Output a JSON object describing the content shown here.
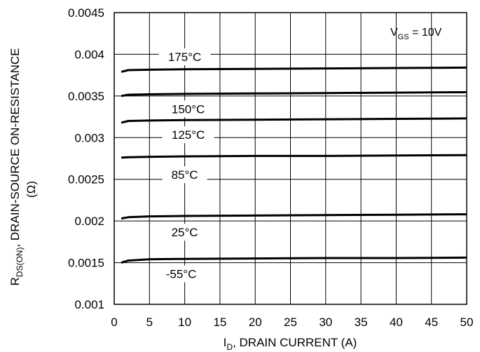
{
  "chart_data": {
    "type": "line",
    "title": "",
    "xlabel": {
      "main": "I",
      "sub": "D",
      "rest": ", DRAIN CURRENT (A)"
    },
    "ylabel": {
      "main": "R",
      "sub": "DS(ON)",
      "rest": ",   DRAIN-SOURCE ON-RESISTANCE",
      "line2": "(Ω)"
    },
    "condition": {
      "main": "V",
      "sub": "GS",
      "rest": " = 10V"
    },
    "xlim": [
      0,
      50
    ],
    "ylim": [
      0.001,
      0.0045
    ],
    "x_ticks": [
      "0",
      "5",
      "10",
      "15",
      "20",
      "25",
      "30",
      "35",
      "40",
      "45",
      "50"
    ],
    "y_ticks": [
      "0.001",
      "0.0015",
      "0.002",
      "0.0025",
      "0.003",
      "0.0035",
      "0.004",
      "0.0045"
    ],
    "grid": true,
    "series": [
      {
        "name": "175°C",
        "label_x": 10,
        "label_y": 0.00397,
        "points": [
          [
            1,
            0.00379
          ],
          [
            2,
            0.00381
          ],
          [
            5,
            0.003815
          ],
          [
            10,
            0.00382
          ],
          [
            20,
            0.003825
          ],
          [
            30,
            0.00383
          ],
          [
            40,
            0.003835
          ],
          [
            50,
            0.00384
          ]
        ]
      },
      {
        "name": "150°C",
        "label_x": 10.5,
        "label_y": 0.003345,
        "points": [
          [
            1,
            0.0035
          ],
          [
            2,
            0.003515
          ],
          [
            5,
            0.00352
          ],
          [
            10,
            0.003525
          ],
          [
            20,
            0.00353
          ],
          [
            30,
            0.003535
          ],
          [
            40,
            0.00354
          ],
          [
            50,
            0.003545
          ]
        ]
      },
      {
        "name": "125°C",
        "label_x": 10.5,
        "label_y": 0.003035,
        "points": [
          [
            1,
            0.00318
          ],
          [
            2,
            0.0032
          ],
          [
            5,
            0.003205
          ],
          [
            10,
            0.00321
          ],
          [
            20,
            0.003215
          ],
          [
            30,
            0.00322
          ],
          [
            40,
            0.003225
          ],
          [
            50,
            0.00323
          ]
        ]
      },
      {
        "name": "85°C",
        "label_x": 10,
        "label_y": 0.002555,
        "points": [
          [
            1,
            0.00276
          ],
          [
            2,
            0.002765
          ],
          [
            5,
            0.00277
          ],
          [
            10,
            0.002775
          ],
          [
            20,
            0.00278
          ],
          [
            30,
            0.00278
          ],
          [
            40,
            0.002785
          ],
          [
            50,
            0.00279
          ]
        ]
      },
      {
        "name": "25°C",
        "label_x": 10,
        "label_y": 0.001865,
        "points": [
          [
            1,
            0.00203
          ],
          [
            2,
            0.002045
          ],
          [
            5,
            0.002055
          ],
          [
            10,
            0.00206
          ],
          [
            20,
            0.002065
          ],
          [
            30,
            0.00207
          ],
          [
            40,
            0.002075
          ],
          [
            50,
            0.00208
          ]
        ]
      },
      {
        "name": "-55°C",
        "label_x": 9.5,
        "label_y": 0.001365,
        "points": [
          [
            1,
            0.0015
          ],
          [
            2,
            0.001525
          ],
          [
            5,
            0.00154
          ],
          [
            10,
            0.001545
          ],
          [
            20,
            0.00155
          ],
          [
            30,
            0.001555
          ],
          [
            40,
            0.001555
          ],
          [
            50,
            0.00156
          ]
        ]
      }
    ]
  }
}
